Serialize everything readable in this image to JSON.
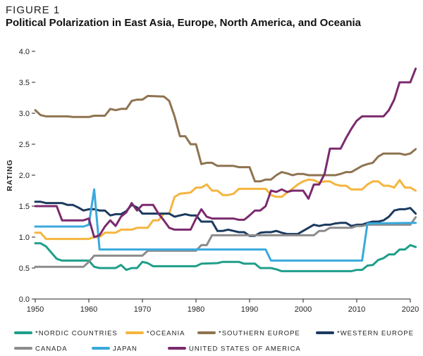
{
  "figure": {
    "label": "FIGURE 1",
    "title": "Political Polarization in East Asia, Europe, North America, and Oceania"
  },
  "chart_data": {
    "type": "line",
    "title": "Political Polarization in East Asia, Europe, North America, and Oceania",
    "xlabel": "",
    "ylabel": "RATING",
    "xlim": [
      1950,
      2020
    ],
    "ylim": [
      0,
      4.0
    ],
    "xticks": [
      1950,
      1960,
      1970,
      1980,
      1990,
      2000,
      2010,
      2020
    ],
    "yticks": [
      "0.0",
      "0.5",
      "1.0",
      "1.5",
      "2.0",
      "2.5",
      "3.0",
      "3.5",
      "4.0"
    ],
    "grid": false,
    "legend_position": "bottom",
    "series": [
      {
        "name": "*NORDIC COUNTRIES",
        "color": "#1f9e8a",
        "points": [
          [
            1950,
            0.9
          ],
          [
            1951,
            0.9
          ],
          [
            1952,
            0.85
          ],
          [
            1953,
            0.75
          ],
          [
            1954,
            0.65
          ],
          [
            1955,
            0.62
          ],
          [
            1958,
            0.62
          ],
          [
            1960,
            0.62
          ],
          [
            1961,
            0.52
          ],
          [
            1962,
            0.5
          ],
          [
            1965,
            0.5
          ],
          [
            1966,
            0.55
          ],
          [
            1967,
            0.47
          ],
          [
            1968,
            0.5
          ],
          [
            1969,
            0.5
          ],
          [
            1970,
            0.6
          ],
          [
            1971,
            0.58
          ],
          [
            1972,
            0.53
          ],
          [
            1975,
            0.53
          ],
          [
            1980,
            0.53
          ],
          [
            1981,
            0.57
          ],
          [
            1984,
            0.58
          ],
          [
            1985,
            0.6
          ],
          [
            1988,
            0.6
          ],
          [
            1989,
            0.57
          ],
          [
            1991,
            0.57
          ],
          [
            1992,
            0.5
          ],
          [
            1994,
            0.5
          ],
          [
            1995,
            0.48
          ],
          [
            1996,
            0.45
          ],
          [
            2000,
            0.45
          ],
          [
            2005,
            0.45
          ],
          [
            2009,
            0.45
          ],
          [
            2010,
            0.47
          ],
          [
            2011,
            0.47
          ],
          [
            2012,
            0.54
          ],
          [
            2013,
            0.55
          ],
          [
            2014,
            0.63
          ],
          [
            2015,
            0.66
          ],
          [
            2016,
            0.72
          ],
          [
            2017,
            0.72
          ],
          [
            2018,
            0.8
          ],
          [
            2019,
            0.8
          ],
          [
            2020,
            0.87
          ],
          [
            2021,
            0.84
          ]
        ]
      },
      {
        "name": "*OCEANIA",
        "color": "#f5b53f",
        "points": [
          [
            1950,
            1.07
          ],
          [
            1951,
            1.07
          ],
          [
            1952,
            0.97
          ],
          [
            1960,
            0.97
          ],
          [
            1961,
            1.0
          ],
          [
            1962,
            1.0
          ],
          [
            1963,
            1.07
          ],
          [
            1965,
            1.07
          ],
          [
            1966,
            1.12
          ],
          [
            1968,
            1.12
          ],
          [
            1969,
            1.15
          ],
          [
            1971,
            1.15
          ],
          [
            1972,
            1.27
          ],
          [
            1973,
            1.27
          ],
          [
            1974,
            1.38
          ],
          [
            1975,
            1.38
          ],
          [
            1976,
            1.65
          ],
          [
            1977,
            1.7
          ],
          [
            1979,
            1.72
          ],
          [
            1980,
            1.8
          ],
          [
            1981,
            1.8
          ],
          [
            1982,
            1.85
          ],
          [
            1983,
            1.75
          ],
          [
            1984,
            1.75
          ],
          [
            1985,
            1.68
          ],
          [
            1986,
            1.68
          ],
          [
            1987,
            1.7
          ],
          [
            1988,
            1.78
          ],
          [
            1993,
            1.78
          ],
          [
            1994,
            1.68
          ],
          [
            1995,
            1.65
          ],
          [
            1996,
            1.65
          ],
          [
            1997,
            1.72
          ],
          [
            1998,
            1.78
          ],
          [
            1999,
            1.85
          ],
          [
            2000,
            1.9
          ],
          [
            2001,
            1.93
          ],
          [
            2002,
            1.92
          ],
          [
            2003,
            1.88
          ],
          [
            2004,
            1.9
          ],
          [
            2005,
            1.9
          ],
          [
            2006,
            1.85
          ],
          [
            2007,
            1.83
          ],
          [
            2008,
            1.83
          ],
          [
            2009,
            1.77
          ],
          [
            2011,
            1.77
          ],
          [
            2012,
            1.85
          ],
          [
            2013,
            1.9
          ],
          [
            2014,
            1.9
          ],
          [
            2015,
            1.83
          ],
          [
            2016,
            1.83
          ],
          [
            2017,
            1.8
          ],
          [
            2018,
            1.92
          ],
          [
            2019,
            1.8
          ],
          [
            2020,
            1.8
          ],
          [
            2021,
            1.75
          ]
        ]
      },
      {
        "name": "*SOUTHERN EUROPE",
        "color": "#8f7350",
        "points": [
          [
            1950,
            3.05
          ],
          [
            1951,
            2.97
          ],
          [
            1952,
            2.95
          ],
          [
            1956,
            2.95
          ],
          [
            1957,
            2.94
          ],
          [
            1960,
            2.94
          ],
          [
            1961,
            2.96
          ],
          [
            1963,
            2.96
          ],
          [
            1964,
            3.07
          ],
          [
            1965,
            3.05
          ],
          [
            1966,
            3.07
          ],
          [
            1967,
            3.07
          ],
          [
            1968,
            3.2
          ],
          [
            1969,
            3.22
          ],
          [
            1970,
            3.22
          ],
          [
            1971,
            3.28
          ],
          [
            1974,
            3.27
          ],
          [
            1975,
            3.2
          ],
          [
            1976,
            2.95
          ],
          [
            1977,
            2.63
          ],
          [
            1978,
            2.63
          ],
          [
            1979,
            2.5
          ],
          [
            1980,
            2.5
          ],
          [
            1981,
            2.18
          ],
          [
            1982,
            2.2
          ],
          [
            1983,
            2.2
          ],
          [
            1984,
            2.15
          ],
          [
            1987,
            2.15
          ],
          [
            1988,
            2.13
          ],
          [
            1990,
            2.13
          ],
          [
            1991,
            1.9
          ],
          [
            1992,
            1.9
          ],
          [
            1993,
            1.93
          ],
          [
            1994,
            1.93
          ],
          [
            1995,
            2.0
          ],
          [
            1996,
            2.05
          ],
          [
            1997,
            2.03
          ],
          [
            1998,
            2.0
          ],
          [
            1999,
            2.02
          ],
          [
            2000,
            2.02
          ],
          [
            2001,
            2.0
          ],
          [
            2005,
            2.0
          ],
          [
            2006,
            2.0
          ],
          [
            2007,
            2.02
          ],
          [
            2008,
            2.05
          ],
          [
            2009,
            2.05
          ],
          [
            2010,
            2.1
          ],
          [
            2011,
            2.15
          ],
          [
            2012,
            2.18
          ],
          [
            2013,
            2.2
          ],
          [
            2014,
            2.3
          ],
          [
            2015,
            2.35
          ],
          [
            2018,
            2.35
          ],
          [
            2019,
            2.33
          ],
          [
            2020,
            2.35
          ],
          [
            2021,
            2.42
          ]
        ]
      },
      {
        "name": "*WESTERN EUROPE",
        "color": "#1b3a5f",
        "points": [
          [
            1950,
            1.57
          ],
          [
            1951,
            1.57
          ],
          [
            1952,
            1.55
          ],
          [
            1955,
            1.55
          ],
          [
            1956,
            1.52
          ],
          [
            1957,
            1.52
          ],
          [
            1958,
            1.48
          ],
          [
            1959,
            1.43
          ],
          [
            1960,
            1.45
          ],
          [
            1961,
            1.45
          ],
          [
            1962,
            1.43
          ],
          [
            1963,
            1.43
          ],
          [
            1964,
            1.35
          ],
          [
            1965,
            1.37
          ],
          [
            1966,
            1.37
          ],
          [
            1967,
            1.42
          ],
          [
            1968,
            1.52
          ],
          [
            1969,
            1.48
          ],
          [
            1970,
            1.38
          ],
          [
            1975,
            1.38
          ],
          [
            1976,
            1.33
          ],
          [
            1977,
            1.35
          ],
          [
            1978,
            1.37
          ],
          [
            1979,
            1.35
          ],
          [
            1980,
            1.35
          ],
          [
            1981,
            1.25
          ],
          [
            1982,
            1.25
          ],
          [
            1983,
            1.25
          ],
          [
            1984,
            1.1
          ],
          [
            1985,
            1.1
          ],
          [
            1986,
            1.12
          ],
          [
            1987,
            1.1
          ],
          [
            1988,
            1.08
          ],
          [
            1989,
            1.08
          ],
          [
            1990,
            1.02
          ],
          [
            1991,
            1.02
          ],
          [
            1992,
            1.07
          ],
          [
            1993,
            1.08
          ],
          [
            1994,
            1.08
          ],
          [
            1995,
            1.1
          ],
          [
            1996,
            1.07
          ],
          [
            1997,
            1.05
          ],
          [
            1998,
            1.05
          ],
          [
            1999,
            1.05
          ],
          [
            2000,
            1.1
          ],
          [
            2001,
            1.15
          ],
          [
            2002,
            1.2
          ],
          [
            2003,
            1.18
          ],
          [
            2004,
            1.2
          ],
          [
            2005,
            1.2
          ],
          [
            2006,
            1.22
          ],
          [
            2007,
            1.23
          ],
          [
            2008,
            1.23
          ],
          [
            2009,
            1.18
          ],
          [
            2010,
            1.2
          ],
          [
            2011,
            1.2
          ],
          [
            2012,
            1.23
          ],
          [
            2013,
            1.25
          ],
          [
            2014,
            1.25
          ],
          [
            2015,
            1.27
          ],
          [
            2016,
            1.33
          ],
          [
            2017,
            1.43
          ],
          [
            2018,
            1.45
          ],
          [
            2019,
            1.45
          ],
          [
            2020,
            1.47
          ],
          [
            2021,
            1.38
          ]
        ]
      },
      {
        "name": "CANADA",
        "color": "#8c8c8c",
        "points": [
          [
            1950,
            0.52
          ],
          [
            1959,
            0.52
          ],
          [
            1960,
            0.6
          ],
          [
            1961,
            0.7
          ],
          [
            1970,
            0.7
          ],
          [
            1971,
            0.78
          ],
          [
            1980,
            0.78
          ],
          [
            1981,
            0.87
          ],
          [
            1982,
            0.87
          ],
          [
            1983,
            1.03
          ],
          [
            2002,
            1.03
          ],
          [
            2003,
            1.1
          ],
          [
            2004,
            1.1
          ],
          [
            2005,
            1.15
          ],
          [
            2009,
            1.15
          ],
          [
            2010,
            1.18
          ],
          [
            2011,
            1.18
          ],
          [
            2012,
            1.2
          ],
          [
            2020,
            1.2
          ],
          [
            2021,
            1.32
          ]
        ]
      },
      {
        "name": "JAPAN",
        "color": "#39a9dc",
        "points": [
          [
            1950,
            1.17
          ],
          [
            1959,
            1.17
          ],
          [
            1960,
            1.2
          ],
          [
            1961,
            1.77
          ],
          [
            1962,
            0.8
          ],
          [
            1963,
            0.8
          ],
          [
            1993,
            0.8
          ],
          [
            1994,
            0.62
          ],
          [
            2011,
            0.62
          ],
          [
            2012,
            1.22
          ],
          [
            2021,
            1.23
          ]
        ]
      },
      {
        "name": "UNITED STATES OF AMERICA",
        "color": "#7b2a6e",
        "points": [
          [
            1950,
            1.5
          ],
          [
            1954,
            1.5
          ],
          [
            1955,
            1.27
          ],
          [
            1959,
            1.27
          ],
          [
            1960,
            1.3
          ],
          [
            1961,
            1.0
          ],
          [
            1962,
            1.03
          ],
          [
            1963,
            1.17
          ],
          [
            1964,
            1.27
          ],
          [
            1965,
            1.18
          ],
          [
            1966,
            1.33
          ],
          [
            1967,
            1.4
          ],
          [
            1968,
            1.55
          ],
          [
            1969,
            1.43
          ],
          [
            1970,
            1.52
          ],
          [
            1972,
            1.52
          ],
          [
            1973,
            1.38
          ],
          [
            1974,
            1.27
          ],
          [
            1975,
            1.15
          ],
          [
            1976,
            1.12
          ],
          [
            1979,
            1.12
          ],
          [
            1980,
            1.3
          ],
          [
            1981,
            1.45
          ],
          [
            1982,
            1.33
          ],
          [
            1983,
            1.3
          ],
          [
            1987,
            1.3
          ],
          [
            1988,
            1.28
          ],
          [
            1989,
            1.28
          ],
          [
            1990,
            1.35
          ],
          [
            1991,
            1.43
          ],
          [
            1992,
            1.43
          ],
          [
            1993,
            1.5
          ],
          [
            1994,
            1.75
          ],
          [
            1995,
            1.73
          ],
          [
            1996,
            1.77
          ],
          [
            1997,
            1.73
          ],
          [
            1998,
            1.75
          ],
          [
            1999,
            1.75
          ],
          [
            2000,
            1.75
          ],
          [
            2001,
            1.62
          ],
          [
            2002,
            1.85
          ],
          [
            2003,
            1.85
          ],
          [
            2004,
            2.02
          ],
          [
            2005,
            2.43
          ],
          [
            2007,
            2.43
          ],
          [
            2008,
            2.6
          ],
          [
            2009,
            2.75
          ],
          [
            2010,
            2.88
          ],
          [
            2011,
            2.95
          ],
          [
            2015,
            2.95
          ],
          [
            2016,
            3.05
          ],
          [
            2017,
            3.22
          ],
          [
            2018,
            3.5
          ],
          [
            2020,
            3.5
          ],
          [
            2021,
            3.72
          ]
        ]
      }
    ]
  }
}
